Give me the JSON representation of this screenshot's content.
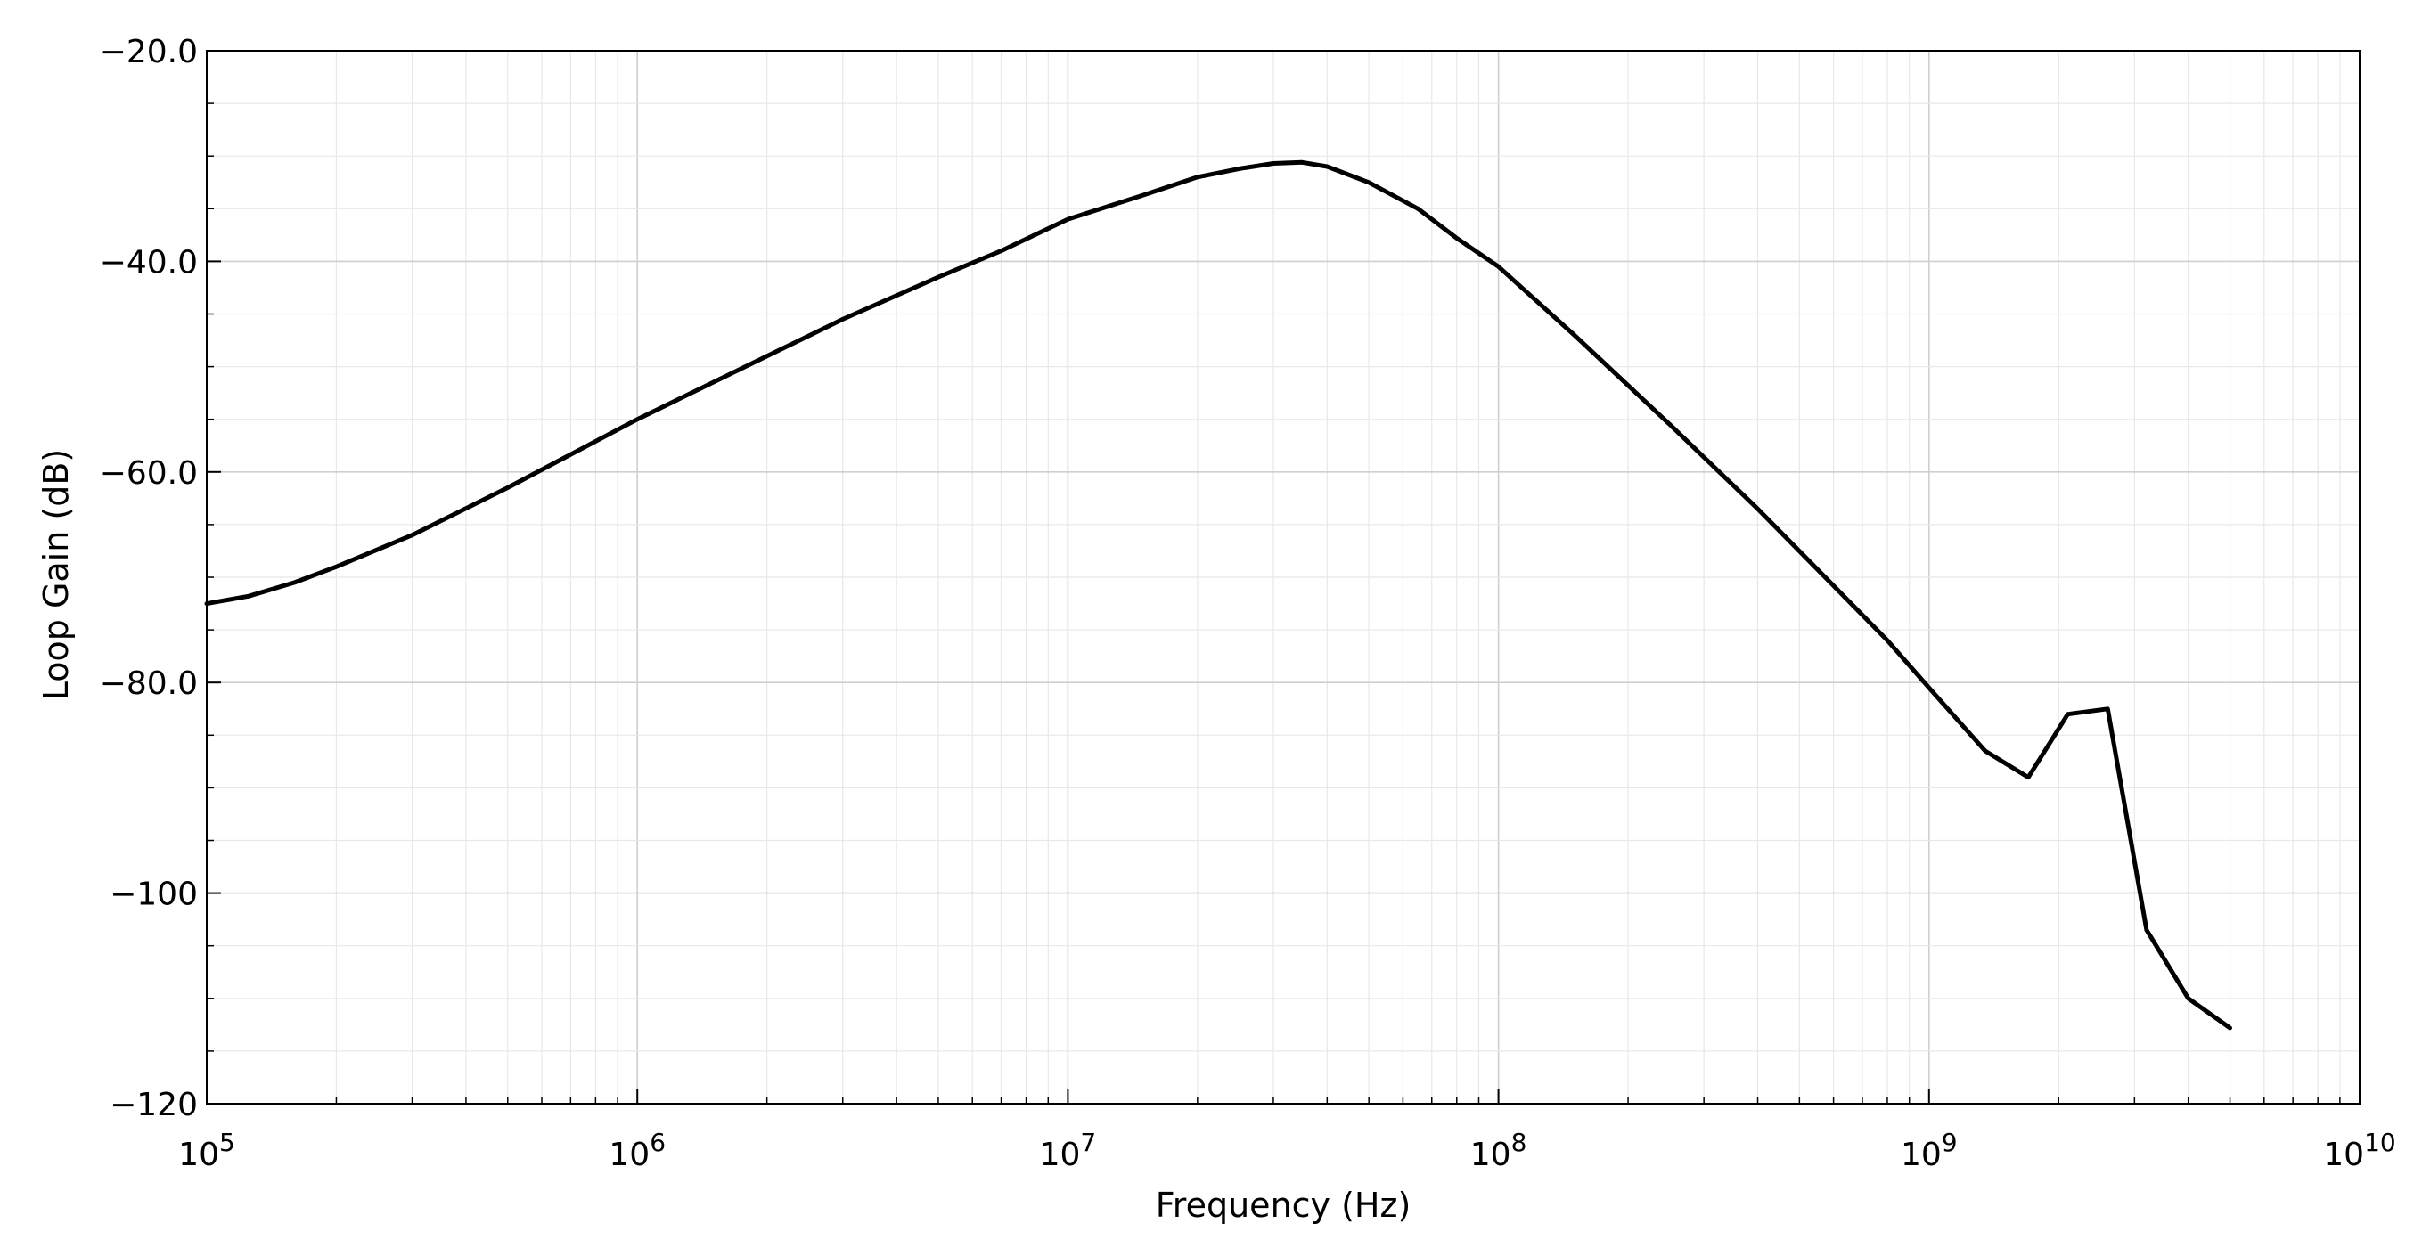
{
  "chart_data": {
    "type": "line",
    "xlabel": "Frequency (Hz)",
    "ylabel": "Loop Gain (dB)",
    "xscale": "log",
    "xlim": [
      100000,
      10000000000
    ],
    "ylim": [
      -120,
      -20
    ],
    "grid": true,
    "x_ticks": [
      {
        "base": "10",
        "exp": "5"
      },
      {
        "base": "10",
        "exp": "6"
      },
      {
        "base": "10",
        "exp": "7"
      },
      {
        "base": "10",
        "exp": "8"
      },
      {
        "base": "10",
        "exp": "9"
      },
      {
        "base": "10",
        "exp": "10"
      }
    ],
    "y_ticks": [
      {
        "value": -20,
        "label": "−20.0"
      },
      {
        "value": -40,
        "label": "−40.0"
      },
      {
        "value": -60,
        "label": "−60.0"
      },
      {
        "value": -80,
        "label": "−80.0"
      },
      {
        "value": -100,
        "label": "−100"
      },
      {
        "value": -120,
        "label": "−120"
      }
    ],
    "series": [
      {
        "color": "#000000",
        "x": [
          100000,
          125000,
          160000,
          200000,
          300000,
          500000,
          1000000,
          2000000,
          3000000,
          5000000,
          7000000,
          10000000,
          15000000,
          20000000,
          25000000,
          30000000,
          35000000,
          40000000,
          50000000,
          65000000,
          80000000,
          100000000,
          150000000,
          250000000,
          400000000,
          600000000,
          800000000,
          1000000000,
          1350000000,
          1700000000,
          2100000000,
          2600000000,
          3200000000,
          4000000000,
          5000000000
        ],
        "y": [
          -72.5,
          -71.8,
          -70.5,
          -69.0,
          -66.0,
          -61.5,
          -55.0,
          -49.0,
          -45.5,
          -41.5,
          -39.0,
          -36.0,
          -33.7,
          -32.0,
          -31.2,
          -30.7,
          -30.6,
          -31.0,
          -32.5,
          -35.0,
          -37.8,
          -40.5,
          -47.0,
          -55.5,
          -63.5,
          -70.8,
          -76.0,
          -80.5,
          -86.5,
          -89.0,
          -83.0,
          -82.5,
          -103.5,
          -110.0,
          -112.8
        ]
      }
    ]
  }
}
